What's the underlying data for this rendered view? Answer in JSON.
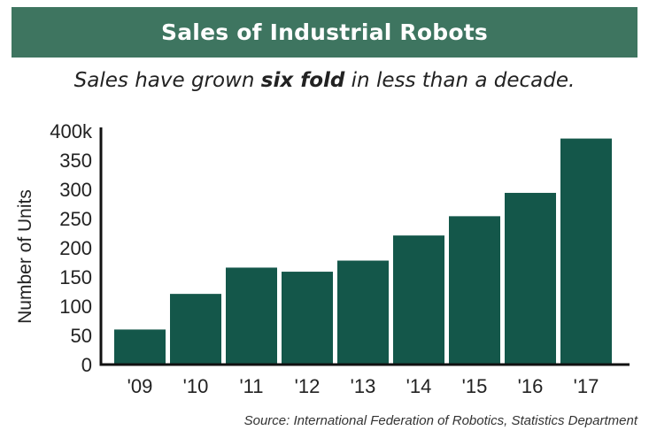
{
  "header": {
    "title": "Sales of Industrial Robots"
  },
  "subtitle": {
    "prefix": "Sales have grown ",
    "emphasis": "six fold",
    "suffix": " in less than a decade."
  },
  "source": "Source: International Federation of Robotics, Statistics Department",
  "colors": {
    "title_bg": "#3e7560",
    "bar": "#14574a",
    "axis": "#111111"
  },
  "chart_data": {
    "type": "bar",
    "title": "Sales of Industrial Robots",
    "xlabel": "",
    "ylabel": "Number of Units",
    "categories": [
      "'09",
      "'10",
      "'11",
      "'12",
      "'13",
      "'14",
      "'15",
      "'16",
      "'17"
    ],
    "values": [
      60,
      121,
      166,
      159,
      178,
      221,
      254,
      294,
      387
    ],
    "ylim": [
      0,
      400
    ],
    "yticks": [
      0,
      50,
      100,
      150,
      200,
      250,
      300,
      350,
      400
    ],
    "ytick_labels": [
      "0",
      "50",
      "100",
      "150",
      "200",
      "250",
      "300",
      "350",
      "400k"
    ],
    "grid": false,
    "legend": "none"
  }
}
